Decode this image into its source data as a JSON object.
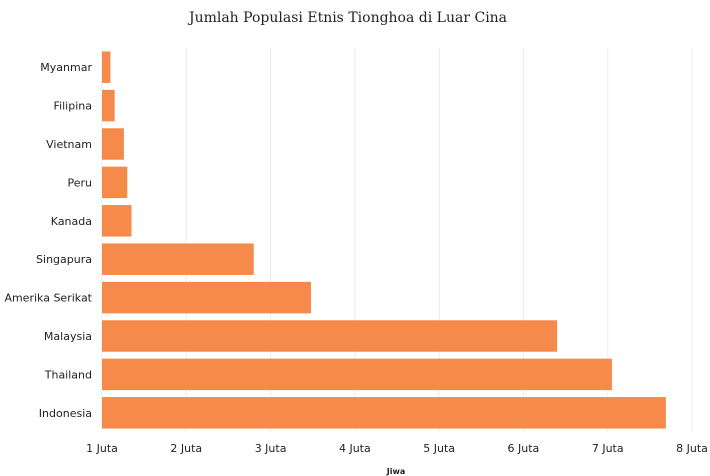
{
  "chart_data": {
    "type": "bar",
    "orientation": "horizontal",
    "title": "Jumlah Populasi Etnis Tionghoa di Luar Cina",
    "xlabel": "Jiwa",
    "ylabel": "",
    "categories": [
      "Myanmar",
      "Filipina",
      "Vietnam",
      "Peru",
      "Kanada",
      "Singapura",
      "Amerika Serikat",
      "Malaysia",
      "Thailand",
      "Indonesia"
    ],
    "values": [
      1100000,
      1150000,
      1260000,
      1300000,
      1350000,
      2800000,
      3480000,
      6400000,
      7050000,
      7690000
    ],
    "xlim": [
      1000000,
      8000000
    ],
    "ticks": [
      1000000,
      2000000,
      3000000,
      4000000,
      5000000,
      6000000,
      7000000,
      8000000
    ],
    "tick_labels": [
      "1 Juta",
      "2 Juta",
      "3 Juta",
      "4 Juta",
      "5 Juta",
      "6 Juta",
      "7 Juta",
      "8 Juta"
    ],
    "bar_color": "#f58a4b",
    "grid": true,
    "legend": "none"
  }
}
